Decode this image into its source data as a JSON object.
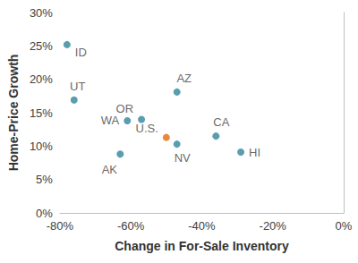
{
  "chart_data": {
    "type": "scatter",
    "x_label": "Change in For-Sale Inventory",
    "y_label": "Home-Price Growth",
    "labels": [
      "ID",
      "UT",
      "WA",
      "OR",
      "AZ",
      "U.S.",
      "NV",
      "AK",
      "CA",
      "HI"
    ],
    "x": [
      -78,
      -76,
      -61,
      -57,
      -47,
      -50,
      -47,
      -63,
      -36,
      -29
    ],
    "values": [
      25.2,
      16.9,
      13.8,
      14.0,
      18.1,
      11.3,
      10.3,
      8.8,
      11.5,
      9.1
    ],
    "colors": [
      "#31849b",
      "#31849b",
      "#31849b",
      "#31849b",
      "#31849b",
      "#e46c0a",
      "#31849b",
      "#31849b",
      "#31849b",
      "#31849b"
    ],
    "xlim": [
      -80,
      0
    ],
    "xticks": [
      {
        "value": -80,
        "label": "-80%"
      },
      {
        "value": -60,
        "label": "-60%"
      },
      {
        "value": -40,
        "label": "-40%"
      },
      {
        "value": -20,
        "label": "-20%"
      },
      {
        "value": 0,
        "label": "0%"
      }
    ],
    "ylim": [
      0,
      30
    ],
    "yticks": [
      {
        "value": 0,
        "label": "0%"
      },
      {
        "value": 5,
        "label": "5%"
      },
      {
        "value": 10,
        "label": "10%"
      },
      {
        "value": 15,
        "label": "15%"
      },
      {
        "value": 20,
        "label": "20%"
      },
      {
        "value": 25,
        "label": "25%"
      },
      {
        "value": 30,
        "label": "30%"
      }
    ],
    "grid": false
  }
}
